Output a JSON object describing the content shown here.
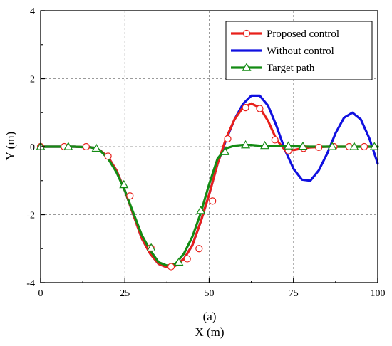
{
  "chart_data": {
    "type": "line",
    "xlabel": "X (m)",
    "ylabel": "Y (m)",
    "panel_label": "(a)",
    "xlim": [
      0,
      100
    ],
    "ylim": [
      -4,
      4
    ],
    "xticks": [
      0,
      25,
      50,
      75,
      100
    ],
    "yticks": [
      -4,
      -2,
      0,
      2,
      4
    ],
    "grid": true,
    "legend_position": "top-right",
    "series": [
      {
        "name": "Proposed control",
        "color": "#e8201b",
        "marker": "circle",
        "x": [
          0,
          5,
          10,
          15,
          17.5,
          20,
          22.5,
          25,
          27.5,
          30,
          32.5,
          35,
          37.5,
          40,
          42.5,
          45,
          47.5,
          50,
          52.5,
          55,
          57.5,
          60,
          62.5,
          65,
          67.5,
          70,
          72.5,
          75,
          77.5,
          80,
          85,
          90,
          95,
          100
        ],
        "y": [
          0,
          0,
          0,
          -0.02,
          -0.1,
          -0.3,
          -0.7,
          -1.3,
          -2.0,
          -2.7,
          -3.15,
          -3.45,
          -3.55,
          -3.5,
          -3.3,
          -2.9,
          -2.2,
          -1.4,
          -0.5,
          0.25,
          0.8,
          1.15,
          1.27,
          1.15,
          0.75,
          0.2,
          -0.1,
          -0.1,
          -0.05,
          -0.02,
          0,
          0,
          0,
          0
        ],
        "marker_x": [
          0,
          7,
          13.5,
          20,
          26.5,
          32.7,
          38.7,
          43.5,
          47,
          51,
          55.5,
          60.8,
          65,
          69.5,
          73.5,
          78,
          82.5,
          87,
          91.5,
          96
        ],
        "marker_y": [
          0,
          0,
          0,
          -0.28,
          -1.45,
          -2.98,
          -3.53,
          -3.3,
          -3.0,
          -1.6,
          0.23,
          1.15,
          1.12,
          0.2,
          -0.12,
          -0.05,
          -0.02,
          0,
          0,
          0
        ]
      },
      {
        "name": "Without control",
        "color": "#1010e0",
        "marker": "none",
        "x": [
          0,
          5,
          10,
          15,
          17.5,
          20,
          22.5,
          25,
          27.5,
          30,
          32.5,
          35,
          37.5,
          40,
          42.5,
          45,
          47.5,
          50,
          52.5,
          55,
          57.5,
          60,
          62.5,
          65,
          67.5,
          70,
          72.5,
          75,
          77.5,
          80,
          82.5,
          85,
          87.5,
          90,
          92.5,
          95,
          97.5,
          100
        ],
        "y": [
          0,
          0,
          0,
          -0.02,
          -0.1,
          -0.3,
          -0.7,
          -1.3,
          -2.0,
          -2.7,
          -3.15,
          -3.45,
          -3.55,
          -3.5,
          -3.3,
          -2.9,
          -2.2,
          -1.4,
          -0.5,
          0.2,
          0.8,
          1.25,
          1.5,
          1.5,
          1.2,
          0.6,
          -0.1,
          -0.65,
          -0.97,
          -1.0,
          -0.7,
          -0.2,
          0.4,
          0.85,
          1.0,
          0.8,
          0.25,
          -0.5
        ]
      },
      {
        "name": "Target path",
        "color": "#138b13",
        "marker": "triangle",
        "x": [
          0,
          5,
          10,
          15,
          17.5,
          20,
          22.5,
          25,
          27.5,
          30,
          32.5,
          35,
          37.5,
          40,
          42.5,
          45,
          47.5,
          50,
          52.5,
          55,
          57.5,
          60,
          62.5,
          65,
          70,
          75,
          80,
          85,
          90,
          95,
          100
        ],
        "y": [
          0,
          0,
          0,
          -0.02,
          -0.1,
          -0.35,
          -0.75,
          -1.3,
          -1.95,
          -2.6,
          -3.05,
          -3.4,
          -3.5,
          -3.45,
          -3.15,
          -2.65,
          -1.95,
          -1.1,
          -0.35,
          -0.05,
          0.03,
          0.05,
          0.05,
          0.03,
          0.02,
          0.01,
          0,
          0,
          0,
          0,
          0
        ],
        "marker_x": [
          0,
          8.2,
          16.5,
          24.7,
          32.8,
          41,
          47.5,
          54.7,
          60.8,
          66.5,
          73.5,
          77.8,
          86.5,
          93,
          99
        ],
        "marker_y": [
          0,
          0,
          -0.05,
          -1.12,
          -2.98,
          -3.4,
          -1.88,
          -0.15,
          0.05,
          0.03,
          0.02,
          0.01,
          0,
          0,
          0
        ]
      }
    ]
  }
}
